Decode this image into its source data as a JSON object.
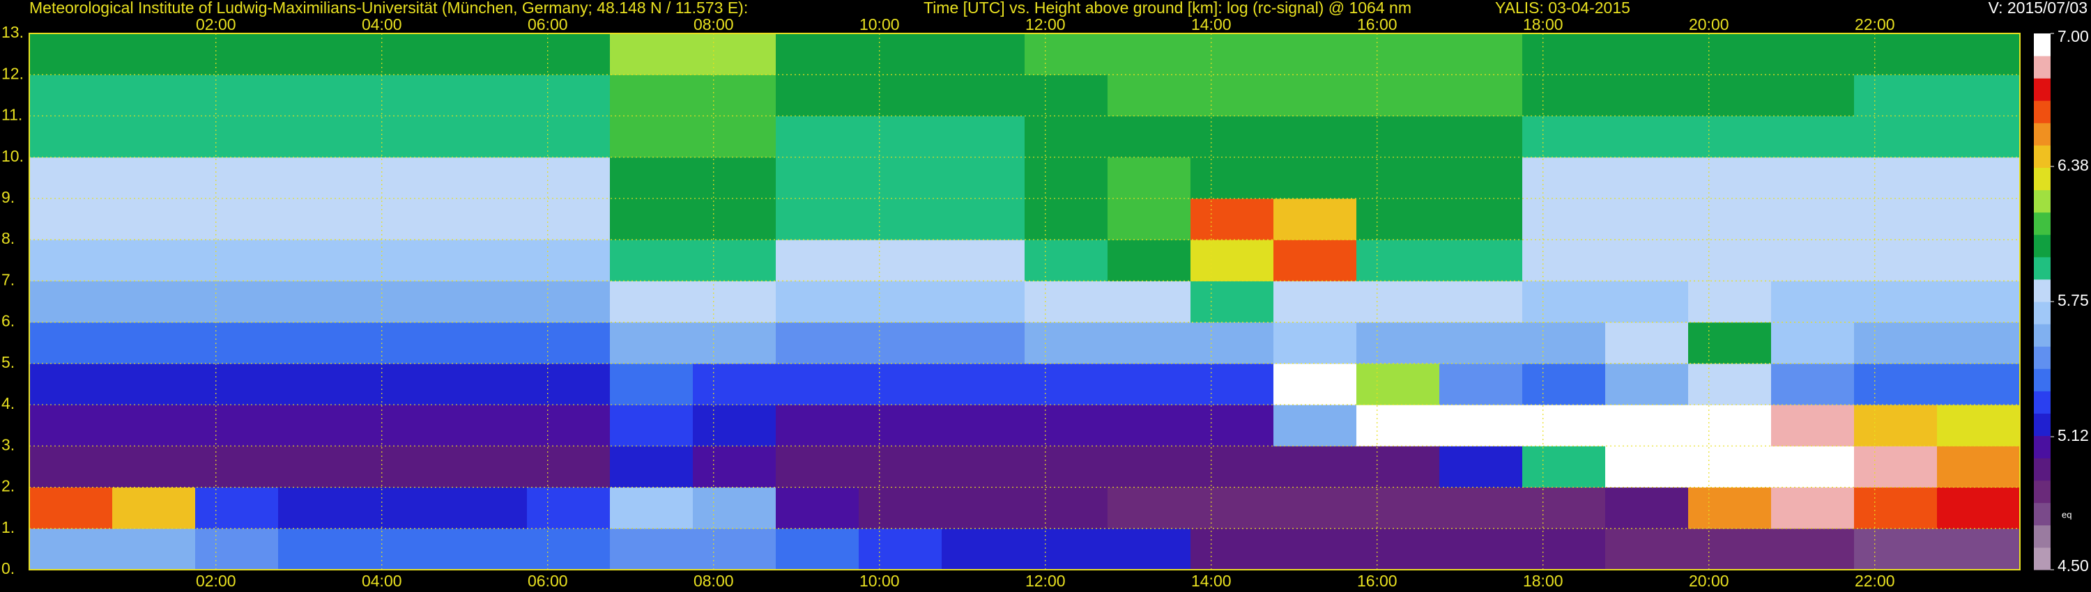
{
  "header": {
    "institute": "Meteorological Institute of Ludwig-Maximilians-Universität (München, Germany; 48.148 N / 11.573 E):",
    "description": "Time [UTC] vs. Height above ground [km]: log (rc-signal) @ 1064 nm",
    "station": "YALIS: 03-04-2015",
    "version": "V: 2015/07/03"
  },
  "chart_data": {
    "type": "heatmap",
    "xlim": [
      -0.25,
      23.75
    ],
    "xticks": [
      {
        "value": 2,
        "label": "02:00"
      },
      {
        "value": 4,
        "label": "04:00"
      },
      {
        "value": 6,
        "label": "06:00"
      },
      {
        "value": 8,
        "label": "08:00"
      },
      {
        "value": 10,
        "label": "10:00"
      },
      {
        "value": 12,
        "label": "12:00"
      },
      {
        "value": 14,
        "label": "14:00"
      },
      {
        "value": 16,
        "label": "16:00"
      },
      {
        "value": 18,
        "label": "18:00"
      },
      {
        "value": 20,
        "label": "20:00"
      },
      {
        "value": 22,
        "label": "22:00"
      }
    ],
    "ylim": [
      0,
      13
    ],
    "yticks": [
      {
        "value": 0,
        "label": "0."
      },
      {
        "value": 1,
        "label": "1."
      },
      {
        "value": 2,
        "label": "2."
      },
      {
        "value": 3,
        "label": "3."
      },
      {
        "value": 4,
        "label": "4."
      },
      {
        "value": 5,
        "label": "5."
      },
      {
        "value": 6,
        "label": "6."
      },
      {
        "value": 7,
        "label": "7."
      },
      {
        "value": 8,
        "label": "8."
      },
      {
        "value": 9,
        "label": "9."
      },
      {
        "value": 10,
        "label": "10."
      },
      {
        "value": 11,
        "label": "11."
      },
      {
        "value": 12,
        "label": "12."
      },
      {
        "value": 13,
        "label": "13."
      }
    ],
    "grid": true,
    "x_edges": [
      -0.25,
      0.75,
      1.75,
      2.75,
      3.75,
      4.75,
      5.75,
      6.75,
      7.75,
      8.75,
      9.75,
      10.75,
      11.75,
      12.75,
      13.75,
      14.75,
      15.75,
      16.75,
      17.75,
      18.75,
      19.75,
      20.75,
      21.75,
      22.75,
      23.75
    ],
    "y_edges": [
      0,
      1,
      2,
      3,
      4,
      5,
      6,
      7,
      8,
      9,
      10,
      11,
      12,
      13
    ],
    "z": [
      [
        5.6,
        5.6,
        5.5,
        5.4,
        5.4,
        5.4,
        5.4,
        5.5,
        5.5,
        5.4,
        5.3,
        5.2,
        5.2,
        5.2,
        5.0,
        5.0,
        5.0,
        5.0,
        5.0,
        4.9,
        4.9,
        4.9,
        4.8,
        4.8
      ],
      [
        6.6,
        6.4,
        5.3,
        5.2,
        5.2,
        5.2,
        5.3,
        5.7,
        5.6,
        5.1,
        5.0,
        5.0,
        5.0,
        4.9,
        4.9,
        4.9,
        4.9,
        4.9,
        4.9,
        5.0,
        6.5,
        6.8,
        6.6,
        6.7
      ],
      [
        5.0,
        5.0,
        5.0,
        5.0,
        5.0,
        5.0,
        5.0,
        5.2,
        5.1,
        5.0,
        5.0,
        5.0,
        5.0,
        5.0,
        5.0,
        5.0,
        5.0,
        5.2,
        5.9,
        6.9,
        7.0,
        7.0,
        6.8,
        6.5
      ],
      [
        5.1,
        5.1,
        5.1,
        5.1,
        5.1,
        5.1,
        5.1,
        5.3,
        5.2,
        5.1,
        5.1,
        5.1,
        5.1,
        5.1,
        5.1,
        5.6,
        6.9,
        7.0,
        7.0,
        7.0,
        7.0,
        6.8,
        6.4,
        6.3
      ],
      [
        5.2,
        5.2,
        5.2,
        5.2,
        5.2,
        5.2,
        5.2,
        5.4,
        5.3,
        5.3,
        5.3,
        5.3,
        5.3,
        5.3,
        5.3,
        7.0,
        6.2,
        5.5,
        5.4,
        5.6,
        5.8,
        5.5,
        5.4,
        5.4
      ],
      [
        5.4,
        5.4,
        5.4,
        5.4,
        5.4,
        5.4,
        5.4,
        5.6,
        5.6,
        5.5,
        5.5,
        5.5,
        5.6,
        5.6,
        5.6,
        5.7,
        5.6,
        5.6,
        5.6,
        5.8,
        6.0,
        5.7,
        5.6,
        5.6
      ],
      [
        5.6,
        5.6,
        5.6,
        5.6,
        5.6,
        5.6,
        5.6,
        5.8,
        5.8,
        5.7,
        5.7,
        5.7,
        5.8,
        5.8,
        5.9,
        5.8,
        5.8,
        5.8,
        5.7,
        5.7,
        5.8,
        5.7,
        5.7,
        5.7
      ],
      [
        5.7,
        5.7,
        5.7,
        5.7,
        5.7,
        5.7,
        5.7,
        5.9,
        5.9,
        5.8,
        5.8,
        5.8,
        5.9,
        6.0,
        6.3,
        6.6,
        5.9,
        5.9,
        5.8,
        5.8,
        5.8,
        5.8,
        5.8,
        5.8
      ],
      [
        5.8,
        5.8,
        5.8,
        5.8,
        5.8,
        5.8,
        5.8,
        6.0,
        6.0,
        5.9,
        5.9,
        5.9,
        6.0,
        6.1,
        6.6,
        6.4,
        6.0,
        6.0,
        5.8,
        5.8,
        5.8,
        5.8,
        5.8,
        5.8
      ],
      [
        5.8,
        5.8,
        5.8,
        5.8,
        5.8,
        5.8,
        5.8,
        6.0,
        6.0,
        5.9,
        5.9,
        5.9,
        6.0,
        6.1,
        6.0,
        6.0,
        6.0,
        6.0,
        5.8,
        5.8,
        5.8,
        5.8,
        5.8,
        5.8
      ],
      [
        5.9,
        5.9,
        5.9,
        5.9,
        5.9,
        5.9,
        5.9,
        6.1,
        6.1,
        5.9,
        5.9,
        5.9,
        6.0,
        6.0,
        6.0,
        6.0,
        6.0,
        6.0,
        5.9,
        5.9,
        5.9,
        5.9,
        5.9,
        5.9
      ],
      [
        5.9,
        5.9,
        5.9,
        5.9,
        5.9,
        5.9,
        5.9,
        6.1,
        6.1,
        6.0,
        6.0,
        6.0,
        6.0,
        6.1,
        6.1,
        6.1,
        6.1,
        6.1,
        6.0,
        6.0,
        6.0,
        6.0,
        5.9,
        5.9
      ],
      [
        6.0,
        6.0,
        6.0,
        6.0,
        6.0,
        6.0,
        6.0,
        6.2,
        6.2,
        6.0,
        6.0,
        6.0,
        6.1,
        6.1,
        6.1,
        6.1,
        6.1,
        6.1,
        6.0,
        6.0,
        6.0,
        6.0,
        6.0,
        6.0
      ]
    ],
    "clim": [
      4.5,
      7.0
    ],
    "cticks": [
      {
        "value": 4.5,
        "label": "4.50"
      },
      {
        "value": 5.12,
        "label": "5.12"
      },
      {
        "value": 5.75,
        "label": "5.75"
      },
      {
        "value": 6.38,
        "label": "6.38"
      },
      {
        "value": 7.0,
        "label": "7.00"
      }
    ],
    "colorbar_note": "eq",
    "colormap": [
      "#b59ab5",
      "#9a7ba0",
      "#7a4a8a",
      "#6a2a7a",
      "#5a1a80",
      "#4a10a0",
      "#2020d0",
      "#2a40f0",
      "#3a70f0",
      "#6090f0",
      "#80b0f0",
      "#a0c8f8",
      "#c0d8f8",
      "#20c080",
      "#10a040",
      "#40c040",
      "#a0e040",
      "#e0e020",
      "#f0c020",
      "#f09020",
      "#f05010",
      "#e01010",
      "#f0b0b0",
      "#ffffff"
    ]
  }
}
